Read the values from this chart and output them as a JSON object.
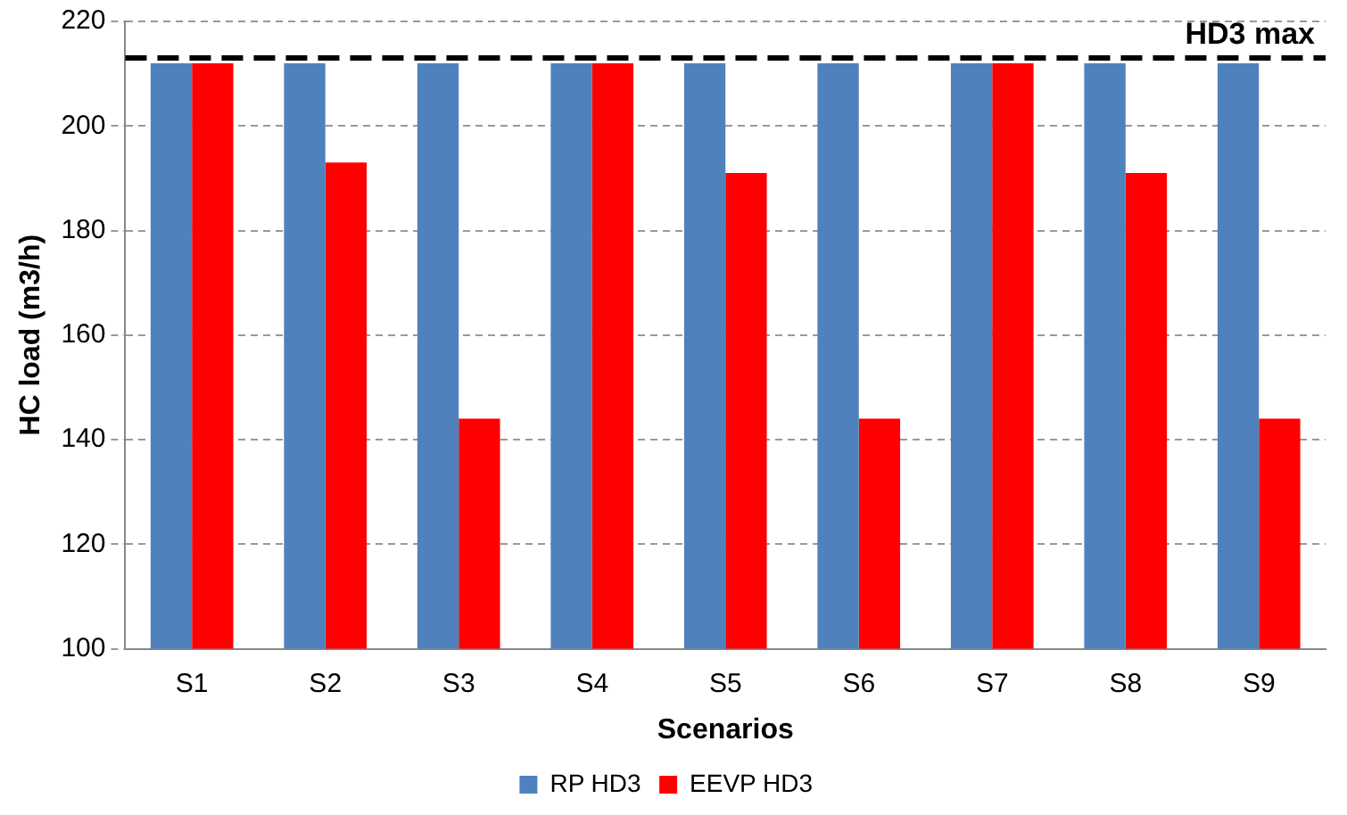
{
  "chart_data": {
    "type": "bar",
    "xlabel": "Scenarios",
    "ylabel": "HC load (m3/h)",
    "categories": [
      "S1",
      "S2",
      "S3",
      "S4",
      "S5",
      "S6",
      "S7",
      "S8",
      "S9"
    ],
    "series": [
      {
        "name": "RP HD3",
        "color": "#4f81bd",
        "values": [
          212,
          212,
          212,
          212,
          212,
          212,
          212,
          212,
          212
        ]
      },
      {
        "name": "EEVP HD3",
        "color": "#ff0000",
        "values": [
          212,
          193,
          144,
          212,
          191,
          144,
          212,
          191,
          144
        ]
      }
    ],
    "ylim": [
      100,
      220
    ],
    "yticks": [
      100,
      120,
      140,
      160,
      180,
      200,
      220
    ],
    "grid": "y",
    "legend": "bottom",
    "ref_lines": [
      {
        "axis": "y",
        "value": 213,
        "label": "HD3 max",
        "color": "#000000",
        "line_style": "dashed"
      }
    ]
  }
}
